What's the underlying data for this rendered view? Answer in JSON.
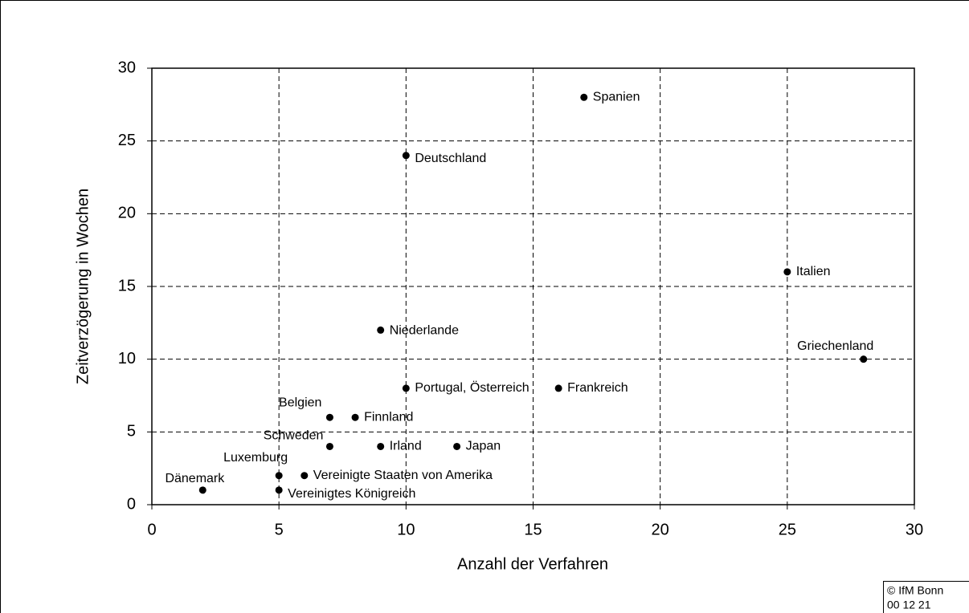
{
  "chart_data": {
    "type": "scatter",
    "x_label": "Anzahl der Verfahren",
    "y_label": "Zeitverzögerung in Wochen",
    "series": [
      {
        "color": "#000000",
        "point_labels": [
          "Spanien",
          "Deutschland",
          "Italien",
          "Niederlande",
          "Griechenland",
          "Portugal, Österreich",
          "Frankreich",
          "Belgien",
          "Finnland",
          "Schweden",
          "Irland",
          "Japan",
          "Luxemburg",
          "Vereinigte Staaten von Amerika",
          "Dänemark",
          "Vereinigtes Königreich"
        ],
        "x": [
          17,
          10,
          25,
          9,
          28,
          10,
          16,
          7,
          8,
          7,
          9,
          12,
          5,
          6,
          2,
          5
        ],
        "values": [
          28,
          24,
          16,
          12,
          10,
          8,
          8,
          6,
          6,
          4,
          4,
          4,
          2,
          2,
          1,
          1
        ]
      }
    ],
    "xlim": [
      0,
      30
    ],
    "xticks": [
      0,
      5,
      10,
      15,
      20,
      25,
      30
    ],
    "ylim": [
      0,
      30
    ],
    "yticks": [
      0,
      5,
      10,
      15,
      20,
      25,
      30
    ],
    "grid": true,
    "annotations": [
      "© IfM Bonn",
      "00 12 21"
    ]
  }
}
